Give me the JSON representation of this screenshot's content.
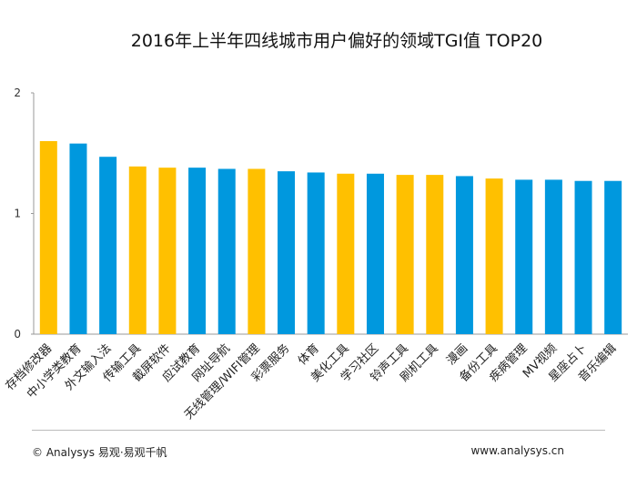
{
  "chart_data": {
    "type": "bar",
    "title": "2016年上半年四线城市用户偏好的领域TGI值 TOP20",
    "xlabel": "",
    "ylabel": "",
    "ylim": [
      0,
      2
    ],
    "yticks": [
      "0",
      "1",
      "2"
    ],
    "categories": [
      "存档修改器",
      "中小学类教育",
      "外文输入法",
      "传输工具",
      "截屏软件",
      "应试教育",
      "网址导航",
      "无线管理/WIFI管理",
      "彩票服务",
      "体育",
      "美化工具",
      "学习社区",
      "铃声工具",
      "刷机工具",
      "漫画",
      "备份工具",
      "疾病管理",
      "MV视频",
      "星座占卜",
      "音乐编辑"
    ],
    "values": [
      1.6,
      1.58,
      1.47,
      1.39,
      1.38,
      1.38,
      1.37,
      1.37,
      1.35,
      1.34,
      1.33,
      1.33,
      1.32,
      1.32,
      1.31,
      1.29,
      1.28,
      1.28,
      1.27,
      1.27
    ],
    "highlight": [
      true,
      false,
      false,
      true,
      true,
      false,
      false,
      true,
      false,
      false,
      true,
      false,
      true,
      true,
      false,
      true,
      false,
      false,
      false,
      false
    ],
    "colors": {
      "highlight": "#FFC000",
      "normal": "#0098DE"
    },
    "grid": false
  },
  "footer": {
    "left": "© Analysys 易观·易观千帆",
    "right": "www.analysys.cn"
  },
  "watermark": "易观"
}
